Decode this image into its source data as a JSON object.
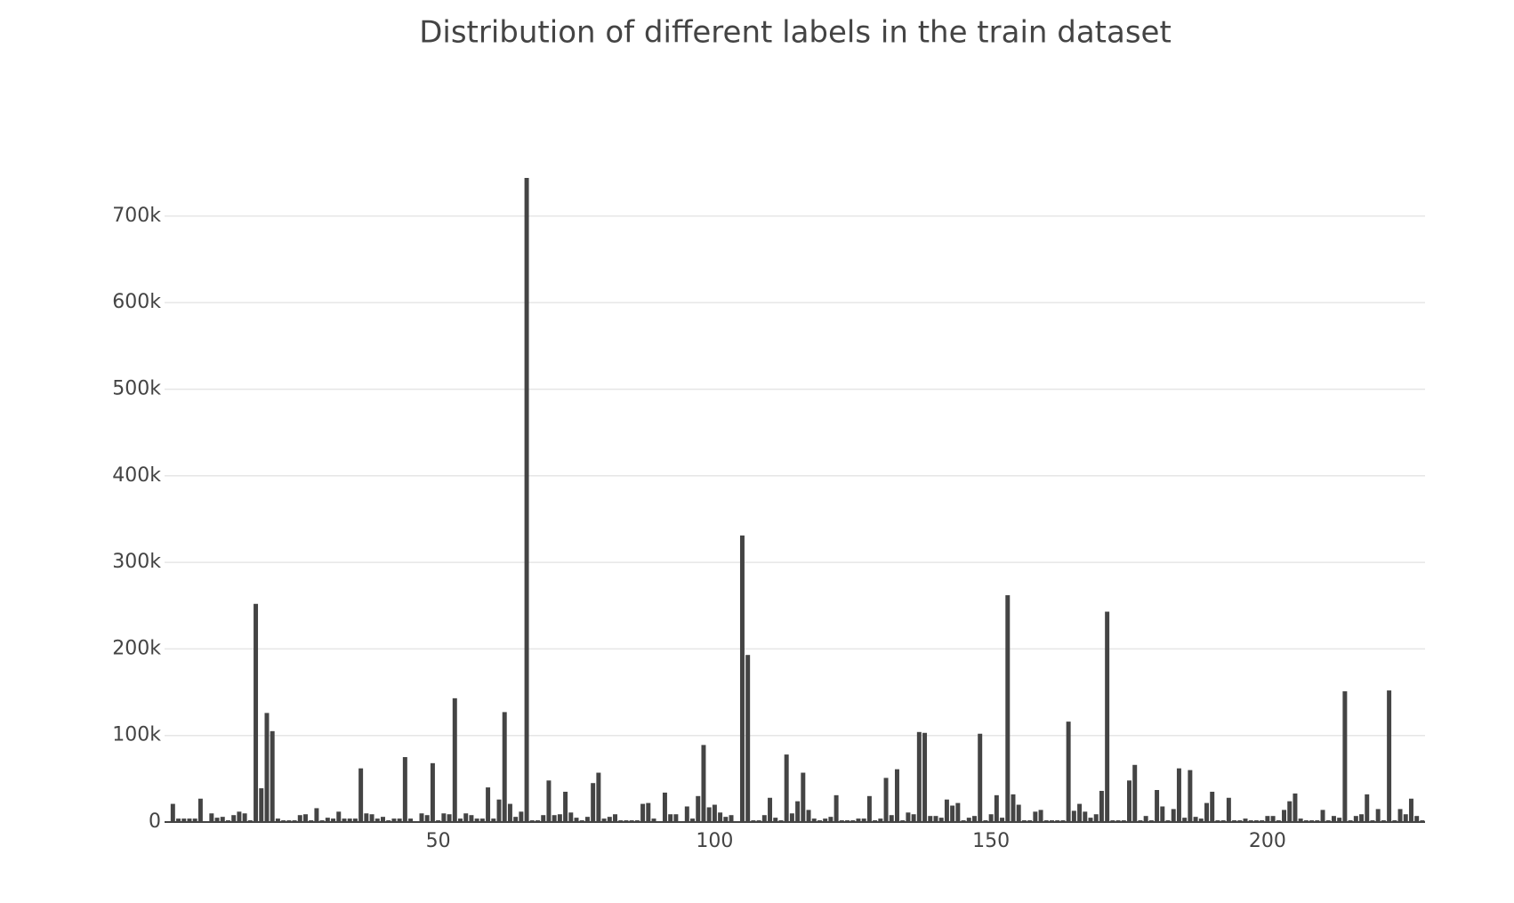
{
  "chart_data": {
    "type": "bar",
    "title": "Distribution of different labels in the train dataset",
    "x": [
      1,
      2,
      3,
      4,
      5,
      6,
      7,
      8,
      9,
      10,
      11,
      12,
      13,
      14,
      15,
      16,
      17,
      18,
      19,
      20,
      21,
      22,
      23,
      24,
      25,
      26,
      27,
      28,
      29,
      30,
      31,
      32,
      33,
      34,
      35,
      36,
      37,
      38,
      39,
      40,
      41,
      42,
      43,
      44,
      45,
      46,
      47,
      48,
      49,
      50,
      51,
      52,
      53,
      54,
      55,
      56,
      57,
      58,
      59,
      60,
      61,
      62,
      63,
      64,
      65,
      66,
      67,
      68,
      69,
      70,
      71,
      72,
      73,
      74,
      75,
      76,
      77,
      78,
      79,
      80,
      81,
      82,
      83,
      84,
      85,
      86,
      87,
      88,
      89,
      90,
      91,
      92,
      93,
      94,
      95,
      96,
      97,
      98,
      99,
      100,
      101,
      102,
      103,
      104,
      105,
      106,
      107,
      108,
      109,
      110,
      111,
      112,
      113,
      114,
      115,
      116,
      117,
      118,
      119,
      120,
      121,
      122,
      123,
      124,
      125,
      126,
      127,
      128,
      129,
      130,
      131,
      132,
      133,
      134,
      135,
      136,
      137,
      138,
      139,
      140,
      141,
      142,
      143,
      144,
      145,
      146,
      147,
      148,
      149,
      150,
      151,
      152,
      153,
      154,
      155,
      156,
      157,
      158,
      159,
      160,
      161,
      162,
      163,
      164,
      165,
      166,
      167,
      168,
      169,
      170,
      171,
      172,
      173,
      174,
      175,
      176,
      177,
      178,
      179,
      180,
      181,
      182,
      183,
      184,
      185,
      186,
      187,
      188,
      189,
      190,
      191,
      192,
      193,
      194,
      195,
      196,
      197,
      198,
      199,
      200,
      201,
      202,
      203,
      204,
      205,
      206,
      207,
      208,
      209,
      210,
      211,
      212,
      213,
      214,
      215,
      216,
      217,
      218,
      219,
      220,
      221,
      222,
      223,
      224,
      225,
      226,
      227,
      228
    ],
    "values": [
      1000,
      21000,
      4000,
      4000,
      4000,
      4000,
      27000,
      1000,
      10000,
      5000,
      6000,
      2000,
      8000,
      12000,
      10000,
      2000,
      252000,
      39000,
      126000,
      105000,
      4000,
      2000,
      2000,
      2000,
      8000,
      9000,
      2000,
      16000,
      2000,
      5000,
      4000,
      12000,
      4000,
      4000,
      4000,
      62000,
      10000,
      9000,
      4000,
      6000,
      2000,
      4000,
      4000,
      75000,
      4000,
      1000,
      10000,
      8000,
      68000,
      2000,
      10000,
      9000,
      143000,
      4000,
      10000,
      8000,
      4000,
      4000,
      40000,
      4000,
      26000,
      127000,
      21000,
      6000,
      12000,
      744000,
      2000,
      2000,
      8000,
      48000,
      8000,
      9000,
      35000,
      11000,
      5000,
      2000,
      6000,
      45000,
      57000,
      4000,
      6000,
      9000,
      2000,
      2000,
      2000,
      2000,
      21000,
      22000,
      4000,
      1000,
      34000,
      9000,
      9000,
      1000,
      18000,
      4000,
      30000,
      89000,
      17000,
      20000,
      11000,
      6000,
      8000,
      1000,
      331000,
      193000,
      2000,
      2000,
      8000,
      28000,
      5000,
      2000,
      78000,
      10000,
      24000,
      57000,
      14000,
      4000,
      2000,
      4000,
      6000,
      31000,
      2000,
      2000,
      2000,
      4000,
      4000,
      30000,
      2000,
      4000,
      51000,
      8000,
      61000,
      2000,
      11000,
      9000,
      104000,
      103000,
      7000,
      7000,
      5000,
      26000,
      19000,
      22000,
      2000,
      5000,
      7000,
      102000,
      2000,
      9000,
      31000,
      5000,
      262000,
      32000,
      20000,
      2000,
      2000,
      12000,
      14000,
      2000,
      2000,
      2000,
      2000,
      116000,
      13000,
      21000,
      12000,
      5000,
      9000,
      36000,
      243000,
      2000,
      2000,
      2000,
      48000,
      66000,
      2000,
      7000,
      2000,
      37000,
      18000,
      2000,
      15000,
      62000,
      5000,
      60000,
      6000,
      4000,
      22000,
      35000,
      2000,
      2000,
      28000,
      2000,
      2000,
      4000,
      2000,
      2000,
      2000,
      7000,
      7000,
      2000,
      14000,
      24000,
      33000,
      4000,
      2000,
      2000,
      2000,
      14000,
      2000,
      7000,
      5000,
      151000,
      2000,
      7000,
      9000,
      32000,
      2000,
      15000,
      2000,
      152000,
      2000,
      15000,
      9000,
      27000,
      7000,
      2000
    ],
    "color": "#444444",
    "xlim": [
      0.5,
      228.5
    ],
    "xticks": [
      50,
      100,
      150,
      200
    ],
    "ylim": [
      0,
      781000
    ],
    "yticks": [
      0,
      {
        "value": 100000,
        "label": "100k"
      },
      {
        "value": 200000,
        "label": "200k"
      },
      {
        "value": 300000,
        "label": "300k"
      },
      {
        "value": 400000,
        "label": "400k"
      },
      {
        "value": 500000,
        "label": "500k"
      },
      {
        "value": 600000,
        "label": "600k"
      },
      {
        "value": 700000,
        "label": "700k"
      }
    ],
    "grid": true
  }
}
